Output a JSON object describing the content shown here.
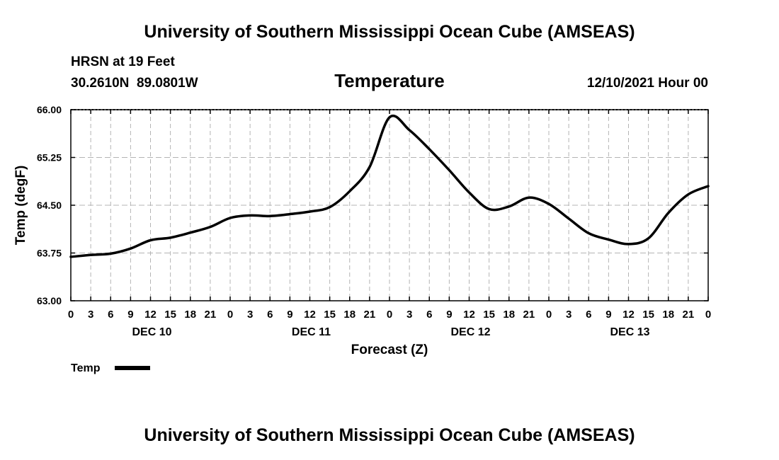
{
  "header": {
    "title": "University of Southern Mississippi Ocean Cube (AMSEAS)",
    "station": "HRSN at 19 Feet",
    "coords": "30.2610N  89.0801W",
    "datetime": "12/10/2021 Hour 00"
  },
  "footer": {
    "title": "University of Southern Mississippi Ocean Cube (AMSEAS)"
  },
  "colors": {
    "line": "#000000",
    "grid": "#b4b4b4"
  },
  "chart_data": {
    "type": "line",
    "title": "Temperature",
    "xlabel": "Forecast (Z)",
    "ylabel": "Temp (degF)",
    "ylim": [
      63.0,
      66.0
    ],
    "xlim": [
      0,
      96
    ],
    "yticks": [
      63.0,
      63.75,
      64.5,
      65.25,
      66.0
    ],
    "ytick_labels": [
      "63.00",
      "63.75",
      "64.50",
      "65.25",
      "66.00"
    ],
    "xtick_hours": [
      0,
      3,
      6,
      9,
      12,
      15,
      18,
      21,
      24,
      27,
      30,
      33,
      36,
      39,
      42,
      45,
      48,
      51,
      54,
      57,
      60,
      63,
      66,
      69,
      72,
      75,
      78,
      81,
      84,
      87,
      90,
      93,
      96
    ],
    "xtick_labels": [
      "0",
      "3",
      "6",
      "9",
      "12",
      "15",
      "18",
      "21",
      "0",
      "3",
      "6",
      "9",
      "12",
      "15",
      "18",
      "21",
      "0",
      "3",
      "6",
      "9",
      "12",
      "15",
      "18",
      "21",
      "0",
      "3",
      "6",
      "9",
      "12",
      "15",
      "18",
      "21",
      "0"
    ],
    "day_labels": [
      {
        "label": "DEC 10",
        "hour": 12
      },
      {
        "label": "DEC 11",
        "hour": 36
      },
      {
        "label": "DEC 12",
        "hour": 60
      },
      {
        "label": "DEC 13",
        "hour": 84
      }
    ],
    "grid": true,
    "series": [
      {
        "name": "Temp",
        "x": [
          0,
          3,
          6,
          9,
          12,
          15,
          18,
          21,
          24,
          27,
          30,
          33,
          36,
          39,
          42,
          45,
          48,
          51,
          54,
          57,
          60,
          63,
          66,
          69,
          72,
          75,
          78,
          81,
          84,
          87,
          90,
          93,
          96
        ],
        "y": [
          63.69,
          63.72,
          63.74,
          63.82,
          63.95,
          63.99,
          64.07,
          64.16,
          64.3,
          64.34,
          64.33,
          64.36,
          64.4,
          64.47,
          64.72,
          65.1,
          65.88,
          65.68,
          65.38,
          65.05,
          64.7,
          64.44,
          64.48,
          64.62,
          64.52,
          64.29,
          64.06,
          63.96,
          63.89,
          63.98,
          64.38,
          64.67,
          64.8
        ]
      }
    ],
    "legend": {
      "label": "Temp",
      "position": "bottom-left"
    }
  }
}
